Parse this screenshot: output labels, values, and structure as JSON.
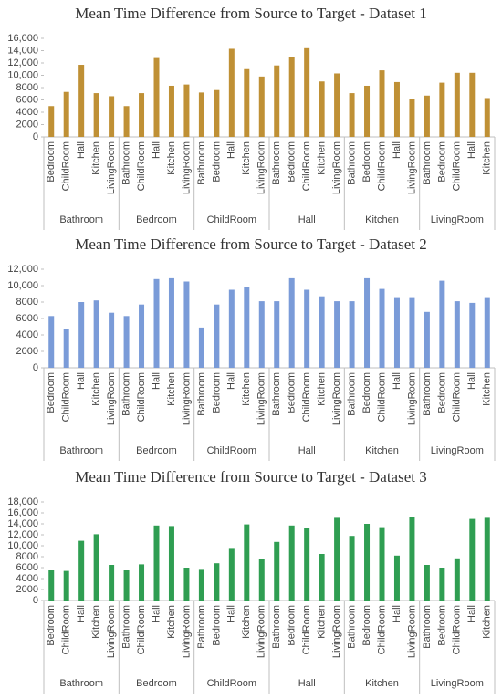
{
  "chart_data": [
    {
      "type": "bar",
      "title": "Mean Time Difference from Source to Target - Dataset 1",
      "color": "#bf9035",
      "ylim": [
        0,
        16000
      ],
      "yticks": [
        0,
        2000,
        4000,
        6000,
        8000,
        {
          "value": 10000,
          "label": "10,000"
        },
        {
          "value": 12000,
          "label": "12,000"
        },
        {
          "value": 14000,
          "label": "14,000"
        },
        {
          "value": 16000,
          "label": "16,000"
        }
      ],
      "groups": [
        {
          "label": "Bathroom",
          "categories": [
            "Bedroom",
            "ChildRoom",
            "Hall",
            "Kitchen",
            "LivingRoom"
          ],
          "values": [
            5000,
            7300,
            11700,
            7100,
            6600
          ]
        },
        {
          "label": "Bedroom",
          "categories": [
            "Bathroom",
            "ChildRoom",
            "Hall",
            "Kitchen",
            "LivingRoom"
          ],
          "values": [
            5000,
            7100,
            12800,
            8300,
            8500
          ]
        },
        {
          "label": "ChildRoom",
          "categories": [
            "Bathroom",
            "Bedroom",
            "Hall",
            "Kitchen",
            "LivingRoom"
          ],
          "values": [
            7200,
            7600,
            14300,
            11000,
            9800
          ]
        },
        {
          "label": "Hall",
          "categories": [
            "Bathroom",
            "Bedroom",
            "ChildRoom",
            "Kitchen",
            "LivingRoom"
          ],
          "values": [
            11600,
            13000,
            14400,
            9000,
            10300
          ]
        },
        {
          "label": "Kitchen",
          "categories": [
            "Bathroom",
            "Bedroom",
            "ChildRoom",
            "Hall",
            "LivingRoom"
          ],
          "values": [
            7100,
            8300,
            10800,
            8900,
            6200
          ]
        },
        {
          "label": "LivingRoom",
          "categories": [
            "Bathroom",
            "Bedroom",
            "ChildRoom",
            "Hall",
            "Kitchen"
          ],
          "values": [
            6700,
            8800,
            10400,
            10400,
            6300
          ]
        }
      ]
    },
    {
      "type": "bar",
      "title": "Mean Time Difference from Source to Target - Dataset 2",
      "color": "#7a9bd8",
      "ylim": [
        0,
        12000
      ],
      "yticks": [
        0,
        2000,
        4000,
        6000,
        8000,
        {
          "value": 10000,
          "label": "10,000"
        },
        {
          "value": 12000,
          "label": "12,000"
        }
      ],
      "groups": [
        {
          "label": "Bathroom",
          "categories": [
            "Bedroom",
            "ChildRoom",
            "Hall",
            "Kitchen",
            "LivingRoom"
          ],
          "values": [
            6300,
            4700,
            8000,
            8200,
            6700
          ]
        },
        {
          "label": "Bedroom",
          "categories": [
            "Bathroom",
            "ChildRoom",
            "Hall",
            "Kitchen",
            "LivingRoom"
          ],
          "values": [
            6300,
            7700,
            10800,
            10900,
            10500
          ]
        },
        {
          "label": "ChildRoom",
          "categories": [
            "Bathroom",
            "Bedroom",
            "Hall",
            "Kitchen",
            "LivingRoom"
          ],
          "values": [
            4900,
            7700,
            9500,
            9800,
            8100
          ]
        },
        {
          "label": "Hall",
          "categories": [
            "Bathroom",
            "Bedroom",
            "ChildRoom",
            "Kitchen",
            "LivingRoom"
          ],
          "values": [
            8100,
            10900,
            9500,
            8700,
            8100
          ]
        },
        {
          "label": "Kitchen",
          "categories": [
            "Bathroom",
            "Bedroom",
            "ChildRoom",
            "Hall",
            "LivingRoom"
          ],
          "values": [
            8100,
            10900,
            9600,
            8600,
            8600
          ]
        },
        {
          "label": "LivingRoom",
          "categories": [
            "Bathroom",
            "Bedroom",
            "ChildRoom",
            "Hall",
            "Kitchen"
          ],
          "values": [
            6800,
            10600,
            8100,
            7900,
            8600
          ]
        }
      ]
    },
    {
      "type": "bar",
      "title": "Mean Time Difference from Source to Target - Dataset 3",
      "color": "#2f9e52",
      "ylim": [
        0,
        18000
      ],
      "yticks": [
        0,
        2000,
        4000,
        6000,
        8000,
        {
          "value": 10000,
          "label": "10,000"
        },
        {
          "value": 12000,
          "label": "12,000"
        },
        {
          "value": 14000,
          "label": "14,000"
        },
        {
          "value": 16000,
          "label": "16,000"
        },
        {
          "value": 18000,
          "label": "18,000"
        }
      ],
      "groups": [
        {
          "label": "Bathroom",
          "categories": [
            "Bedroom",
            "ChildRoom",
            "Hall",
            "Kitchen",
            "LivingRoom"
          ],
          "values": [
            5500,
            5400,
            10900,
            12100,
            6500
          ]
        },
        {
          "label": "Bedroom",
          "categories": [
            "Bathroom",
            "ChildRoom",
            "Hall",
            "Kitchen",
            "LivingRoom"
          ],
          "values": [
            5500,
            6600,
            13700,
            13600,
            6000
          ]
        },
        {
          "label": "ChildRoom",
          "categories": [
            "Bathroom",
            "Bedroom",
            "Hall",
            "Kitchen",
            "LivingRoom"
          ],
          "values": [
            5600,
            6800,
            9600,
            13900,
            7600
          ]
        },
        {
          "label": "Hall",
          "categories": [
            "Bathroom",
            "Bedroom",
            "ChildRoom",
            "Kitchen",
            "LivingRoom"
          ],
          "values": [
            10700,
            13700,
            13300,
            8500,
            15100
          ]
        },
        {
          "label": "Kitchen",
          "categories": [
            "Bathroom",
            "Bedroom",
            "ChildRoom",
            "Hall",
            "LivingRoom"
          ],
          "values": [
            11800,
            14000,
            13400,
            8200,
            15300
          ]
        },
        {
          "label": "LivingRoom",
          "categories": [
            "Bathroom",
            "Bedroom",
            "ChildRoom",
            "Hall",
            "Kitchen"
          ],
          "values": [
            6500,
            6000,
            7700,
            14900,
            15100
          ]
        }
      ]
    }
  ]
}
